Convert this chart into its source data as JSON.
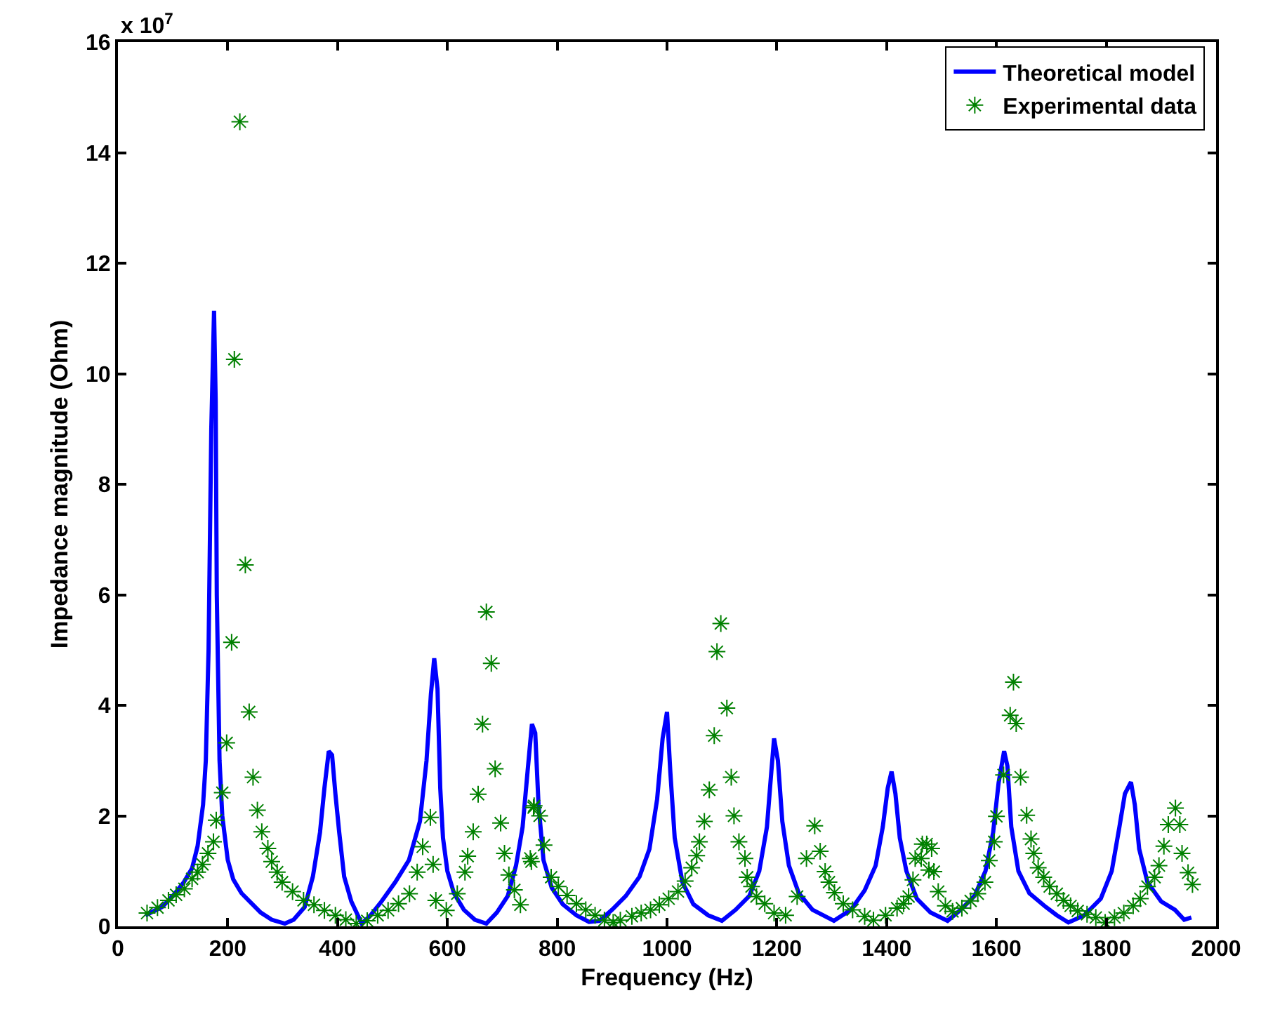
{
  "chart_data": {
    "type": "line",
    "xlabel": "Frequency (Hz)",
    "ylabel": "Impedance magnitude (Ohm)",
    "annotations": [
      "x 10$^{7}$"
    ],
    "xlim": [
      0,
      2000
    ],
    "xticks": [
      0,
      200,
      400,
      600,
      800,
      1000,
      1200,
      1400,
      1600,
      1800,
      2000
    ],
    "ylim": [
      0,
      16
    ],
    "yticks": [
      0,
      2,
      4,
      6,
      8,
      10,
      12,
      14,
      16
    ],
    "legend": "top right",
    "series": [
      {
        "name": "Theoretical model",
        "marker": "none",
        "color": "#0000ff",
        "x": [
          50,
          80,
          100,
          120,
          135,
          145,
          155,
          160,
          165,
          170,
          175,
          178,
          180,
          185,
          190,
          200,
          210,
          225,
          240,
          260,
          280,
          304,
          320,
          340,
          355,
          368,
          376,
          384,
          390,
          396,
          403,
          412,
          425,
          444,
          460,
          480,
          505,
          530,
          550,
          562,
          570,
          576,
          582,
          587,
          592,
          600,
          612,
          630,
          650,
          671,
          690,
          710,
          725,
          737,
          746,
          754,
          760,
          766,
          775,
          790,
          810,
          835,
          858,
          877,
          900,
          925,
          950,
          968,
          982,
          992,
          1000,
          1006,
          1014,
          1028,
          1048,
          1075,
          1100,
          1125,
          1150,
          1168,
          1182,
          1190,
          1195,
          1202,
          1210,
          1222,
          1240,
          1265,
          1304,
          1335,
          1360,
          1380,
          1393,
          1402,
          1409,
          1416,
          1424,
          1436,
          1455,
          1480,
          1511,
          1535,
          1560,
          1580,
          1594,
          1604,
          1614,
          1620,
          1627,
          1640,
          1660,
          1690,
          1710,
          1731,
          1760,
          1790,
          1810,
          1824,
          1834,
          1845,
          1852,
          1860,
          1875,
          1900,
          1925,
          1942,
          1955
        ],
        "values": [
          0.2,
          0.35,
          0.55,
          0.8,
          1.05,
          1.45,
          2.2,
          3.0,
          5.0,
          9.0,
          11.14,
          9.5,
          6.0,
          3.0,
          2.0,
          1.2,
          0.85,
          0.6,
          0.45,
          0.25,
          0.12,
          0.05,
          0.12,
          0.35,
          0.9,
          1.7,
          2.5,
          3.17,
          3.1,
          2.4,
          1.7,
          0.9,
          0.45,
          0.05,
          0.2,
          0.45,
          0.8,
          1.2,
          1.9,
          3.0,
          4.2,
          4.85,
          4.3,
          2.5,
          1.6,
          1.0,
          0.6,
          0.3,
          0.12,
          0.05,
          0.25,
          0.55,
          1.1,
          1.8,
          2.8,
          3.66,
          3.5,
          2.2,
          1.2,
          0.7,
          0.4,
          0.2,
          0.08,
          0.1,
          0.3,
          0.55,
          0.9,
          1.4,
          2.3,
          3.4,
          3.88,
          2.8,
          1.6,
          0.8,
          0.4,
          0.2,
          0.1,
          0.3,
          0.55,
          1.0,
          1.8,
          2.8,
          3.4,
          3.0,
          1.9,
          1.1,
          0.6,
          0.3,
          0.1,
          0.3,
          0.65,
          1.1,
          1.8,
          2.5,
          2.8,
          2.4,
          1.6,
          1.0,
          0.5,
          0.25,
          0.1,
          0.3,
          0.55,
          1.0,
          1.7,
          2.6,
          3.17,
          2.9,
          1.8,
          1.0,
          0.6,
          0.35,
          0.2,
          0.07,
          0.2,
          0.5,
          1.0,
          1.8,
          2.4,
          2.61,
          2.2,
          1.4,
          0.8,
          0.45,
          0.3,
          0.12,
          0.16
        ]
      },
      {
        "name": "Experimental data",
        "type": "scatter",
        "marker": "cross",
        "color": "#008000",
        "x": [
          53,
          72,
          92,
          106,
          121,
          135,
          145,
          154,
          164,
          174,
          179,
          190,
          198,
          207,
          212,
          222,
          232,
          239,
          246,
          254,
          262,
          273,
          280,
          290,
          299,
          318,
          338,
          357,
          376,
          396,
          415,
          434,
          454,
          473,
          492,
          511,
          531,
          545,
          555,
          569,
          574,
          579,
          598,
          618,
          632,
          637,
          647,
          656,
          664,
          671,
          680,
          687,
          697,
          704,
          712,
          722,
          733,
          751,
          753,
          757,
          758,
          768,
          776,
          789,
          802,
          818,
          835,
          852,
          869,
          886,
          902,
          915,
          936,
          953,
          970,
          986,
          1003,
          1020,
          1033,
          1045,
          1054,
          1059,
          1068,
          1077,
          1086,
          1091,
          1098,
          1109,
          1117,
          1122,
          1131,
          1142,
          1146,
          1154,
          1163,
          1178,
          1195,
          1216,
          1237,
          1254,
          1269,
          1279,
          1288,
          1295,
          1305,
          1321,
          1338,
          1360,
          1376,
          1398,
          1419,
          1431,
          1440,
          1448,
          1452,
          1463,
          1465,
          1473,
          1477,
          1482,
          1486,
          1494,
          1507,
          1520,
          1537,
          1553,
          1566,
          1579,
          1587,
          1596,
          1600,
          1613,
          1625,
          1631,
          1636,
          1644,
          1655,
          1663,
          1668,
          1676,
          1686,
          1697,
          1710,
          1722,
          1735,
          1748,
          1765,
          1781,
          1798,
          1815,
          1832,
          1849,
          1862,
          1875,
          1888,
          1896,
          1905,
          1913,
          1926,
          1934,
          1938,
          1949,
          1957
        ],
        "values": [
          0.24,
          0.34,
          0.47,
          0.57,
          0.68,
          0.86,
          0.98,
          1.12,
          1.32,
          1.53,
          1.92,
          2.42,
          3.32,
          5.14,
          10.26,
          14.56,
          6.54,
          3.88,
          2.7,
          2.1,
          1.71,
          1.41,
          1.17,
          0.98,
          0.8,
          0.63,
          0.47,
          0.39,
          0.29,
          0.2,
          0.12,
          0.05,
          0.1,
          0.2,
          0.29,
          0.41,
          0.59,
          0.98,
          1.44,
          1.97,
          1.12,
          0.47,
          0.29,
          0.59,
          0.98,
          1.27,
          1.71,
          2.39,
          3.66,
          5.69,
          4.76,
          2.85,
          1.87,
          1.32,
          0.93,
          0.66,
          0.39,
          1.23,
          1.17,
          2.15,
          2.18,
          2.0,
          1.47,
          0.89,
          0.72,
          0.56,
          0.41,
          0.3,
          0.2,
          0.11,
          0.07,
          0.11,
          0.18,
          0.24,
          0.3,
          0.39,
          0.5,
          0.63,
          0.82,
          1.06,
          1.28,
          1.53,
          1.9,
          2.47,
          3.45,
          4.97,
          5.48,
          3.95,
          2.7,
          2.0,
          1.53,
          1.23,
          0.89,
          0.72,
          0.54,
          0.41,
          0.24,
          0.2,
          0.54,
          1.23,
          1.82,
          1.36,
          0.99,
          0.8,
          0.61,
          0.41,
          0.3,
          0.18,
          0.11,
          0.2,
          0.33,
          0.41,
          0.54,
          0.84,
          1.23,
          1.23,
          1.49,
          1.49,
          1.02,
          1.41,
          0.99,
          0.63,
          0.37,
          0.27,
          0.33,
          0.46,
          0.59,
          0.8,
          1.19,
          1.53,
          1.99,
          2.74,
          3.82,
          4.42,
          3.67,
          2.7,
          2.01,
          1.58,
          1.32,
          1.06,
          0.89,
          0.72,
          0.59,
          0.47,
          0.37,
          0.28,
          0.22,
          0.16,
          0.07,
          0.16,
          0.24,
          0.37,
          0.5,
          0.72,
          0.89,
          1.1,
          1.45,
          1.84,
          2.14,
          1.84,
          1.32,
          0.97,
          0.76
        ]
      }
    ]
  }
}
